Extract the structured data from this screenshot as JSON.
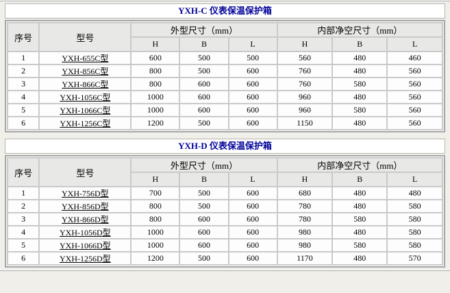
{
  "page": {
    "background": "#f0efea",
    "title_color": "#000099",
    "header_bg": "#e8e8e6",
    "grid_color": "#cacaca"
  },
  "tables": [
    {
      "title": "YXH-C 仪表保温保护箱",
      "headers": {
        "seq": "序号",
        "model": "型号",
        "outer_group": "外型尺寸（mm）",
        "inner_group": "内部净空尺寸（mm）",
        "subs": [
          "H",
          "B",
          "L",
          "H",
          "B",
          "L"
        ]
      },
      "rows": [
        {
          "seq": "1",
          "model": "YXH-655C型",
          "values": [
            "600",
            "500",
            "500",
            "560",
            "480",
            "460"
          ]
        },
        {
          "seq": "2",
          "model": "YXH-856C型",
          "values": [
            "800",
            "500",
            "600",
            "760",
            "480",
            "560"
          ]
        },
        {
          "seq": "3",
          "model": "YXH-866C型",
          "values": [
            "800",
            "600",
            "600",
            "760",
            "580",
            "560"
          ]
        },
        {
          "seq": "4",
          "model": "YXH-1056C型",
          "values": [
            "1000",
            "600",
            "600",
            "960",
            "480",
            "560"
          ]
        },
        {
          "seq": "5",
          "model": "YXH-1066C型",
          "values": [
            "1000",
            "600",
            "600",
            "960",
            "580",
            "560"
          ]
        },
        {
          "seq": "6",
          "model": "YXH-1256C型",
          "values": [
            "1200",
            "500",
            "600",
            "1150",
            "480",
            "560"
          ]
        }
      ]
    },
    {
      "title": "YXH-D 仪表保温保护箱",
      "headers": {
        "seq": "序号",
        "model": "型号",
        "outer_group": "外型尺寸（mm）",
        "inner_group": "内部净空尺寸（mm）",
        "subs": [
          "H",
          "B",
          "L",
          "H",
          "B",
          "L"
        ]
      },
      "rows": [
        {
          "seq": "1",
          "model": "YXH-756D型",
          "values": [
            "700",
            "500",
            "600",
            "680",
            "480",
            "480"
          ]
        },
        {
          "seq": "2",
          "model": "YXH-856D型",
          "values": [
            "800",
            "500",
            "600",
            "780",
            "480",
            "580"
          ]
        },
        {
          "seq": "3",
          "model": "YXH-866D型",
          "values": [
            "800",
            "600",
            "600",
            "780",
            "580",
            "580"
          ]
        },
        {
          "seq": "4",
          "model": "YXH-1056D型",
          "values": [
            "1000",
            "600",
            "600",
            "980",
            "480",
            "580"
          ]
        },
        {
          "seq": "5",
          "model": "YXH-1066D型",
          "values": [
            "1000",
            "600",
            "600",
            "980",
            "580",
            "580"
          ]
        },
        {
          "seq": "6",
          "model": "YXH-1256D型",
          "values": [
            "1200",
            "500",
            "600",
            "1170",
            "480",
            "570"
          ]
        }
      ]
    }
  ]
}
